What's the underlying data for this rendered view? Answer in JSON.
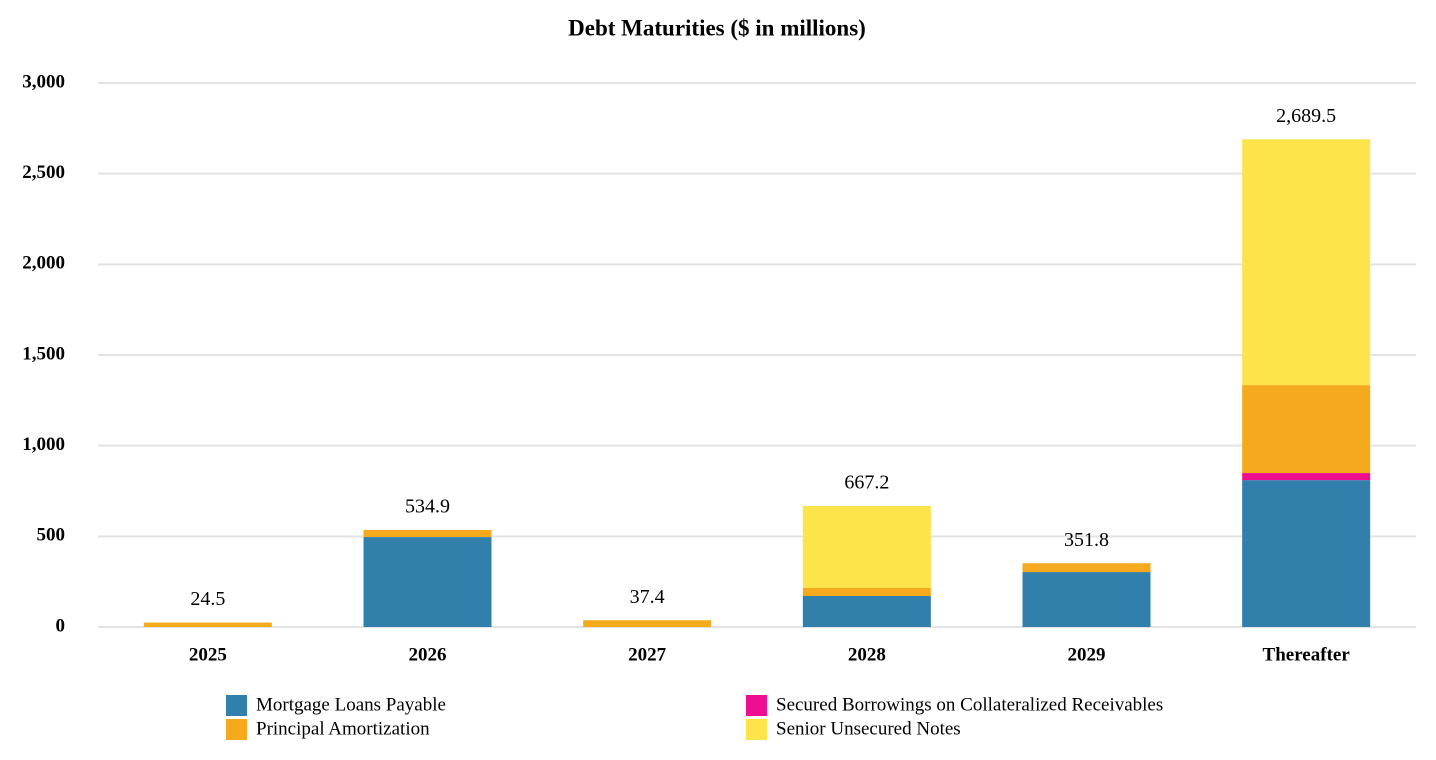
{
  "chart_data": {
    "type": "stacked-bar",
    "title": "Debt Maturities ($ in millions)",
    "categories": [
      "2025",
      "2026",
      "2027",
      "2028",
      "2029",
      "Thereafter"
    ],
    "series": [
      {
        "name": "Mortgage Loans Payable",
        "color": "#317fab",
        "values": [
          0,
          496.0,
          0,
          171.0,
          303.0,
          810.0
        ]
      },
      {
        "name": "Secured Borrowings on Collateralized Receivables",
        "color": "#ee0e8f",
        "values": [
          0,
          0,
          0,
          0,
          0,
          39.0
        ]
      },
      {
        "name": "Principal Amortization",
        "color": "#f5a91c",
        "values": [
          24.5,
          38.9,
          37.4,
          44.0,
          48.8,
          485.0
        ]
      },
      {
        "name": "Senior Unsecured Notes",
        "color": "#fde44a",
        "values": [
          0,
          0,
          0,
          452.2,
          0,
          1355.5
        ]
      }
    ],
    "totals": [
      24.5,
      534.9,
      37.4,
      667.2,
      351.8,
      2689.5
    ],
    "total_labels": [
      "24.5",
      "534.9",
      "37.4",
      "667.2",
      "351.8",
      "2,689.5"
    ],
    "ylim": [
      0,
      3000
    ],
    "yticks": [
      0,
      500,
      {
        "value": 1000,
        "label": "1,000"
      },
      {
        "value": 1500,
        "label": "1,500"
      },
      {
        "value": 2000,
        "label": "2,000"
      },
      {
        "value": 2500,
        "label": "2,500"
      },
      {
        "value": 3000,
        "label": "3,000"
      }
    ],
    "grid": true
  }
}
